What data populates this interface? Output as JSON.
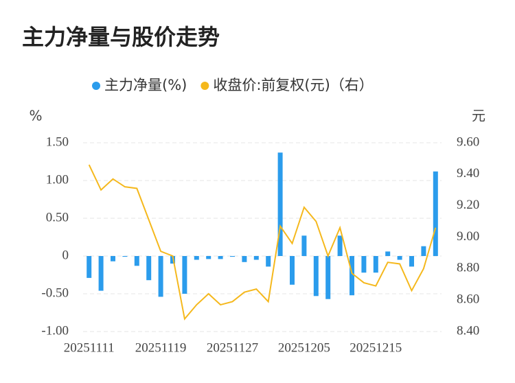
{
  "chart_data": {
    "type": "bar-line",
    "title": "主力净量与股价走势",
    "y_label": "%",
    "y2_label": "元",
    "categories": [
      "20251111",
      null,
      null,
      null,
      null,
      null,
      "20251119",
      null,
      null,
      null,
      null,
      null,
      "20251127",
      null,
      null,
      null,
      null,
      null,
      "20251205",
      null,
      null,
      null,
      null,
      null,
      "20251215",
      null,
      null,
      null,
      null,
      null
    ],
    "series": [
      {
        "name": "主力净量(%)",
        "type": "bar",
        "color": "#2b9cec",
        "values": [
          -0.29,
          -0.46,
          -0.07,
          -0.01,
          -0.13,
          -0.32,
          -0.54,
          -0.1,
          -0.5,
          -0.05,
          -0.04,
          -0.04,
          -0.01,
          -0.08,
          -0.05,
          -0.14,
          1.37,
          -0.38,
          0.27,
          -0.53,
          -0.57,
          0.27,
          -0.52,
          -0.22,
          -0.22,
          0.06,
          -0.05,
          -0.14,
          0.13,
          1.12
        ]
      },
      {
        "name": "收盘价:前复权(元)（右）",
        "type": "line",
        "axis": "y2",
        "color": "#f5b81c",
        "values": [
          9.46,
          9.3,
          9.37,
          9.32,
          9.31,
          9.11,
          8.91,
          8.88,
          8.48,
          8.57,
          8.64,
          8.57,
          8.59,
          8.65,
          8.67,
          8.59,
          9.07,
          8.96,
          9.19,
          9.1,
          8.88,
          9.06,
          8.77,
          8.71,
          8.69,
          8.84,
          8.83,
          8.66,
          8.8,
          9.06
        ]
      }
    ],
    "ylim": [
      -1.0,
      1.5
    ],
    "yticks": [
      {
        "value": 1.5,
        "label": "1.50"
      },
      {
        "value": 1.0,
        "label": "1.00"
      },
      {
        "value": 0.5,
        "label": "0.50"
      },
      0,
      {
        "value": -0.5,
        "label": "-0.50"
      },
      {
        "value": -1.0,
        "label": "-1.00"
      }
    ],
    "y2lim": [
      8.4,
      9.6
    ],
    "y2ticks": [
      {
        "value": 9.6,
        "label": "9.60"
      },
      {
        "value": 9.4,
        "label": "9.40"
      },
      {
        "value": 9.2,
        "label": "9.20"
      },
      {
        "value": 9.0,
        "label": "9.00"
      },
      {
        "value": 8.8,
        "label": "8.80"
      },
      {
        "value": 8.6,
        "label": "8.60"
      },
      {
        "value": 8.4,
        "label": "8.40"
      }
    ],
    "grid": true
  }
}
